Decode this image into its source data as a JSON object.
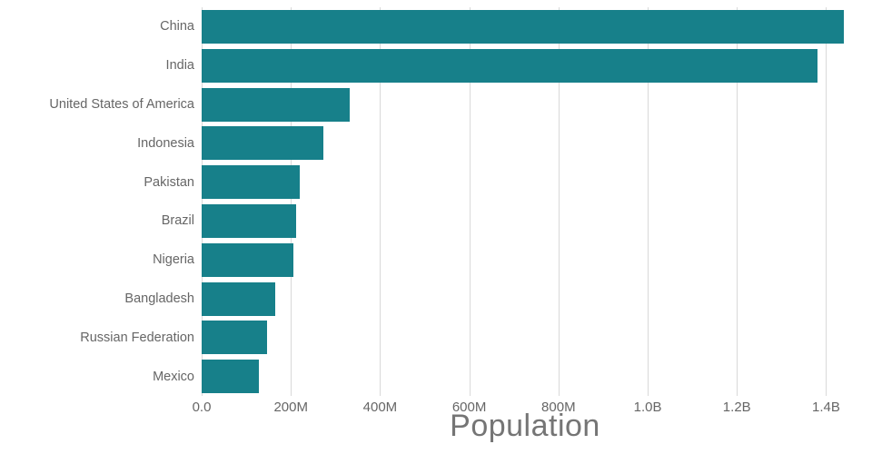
{
  "chart_data": {
    "type": "bar",
    "orientation": "horizontal",
    "title": "",
    "xlabel": "Population",
    "ylabel": "",
    "categories": [
      "China",
      "India",
      "United States of America",
      "Indonesia",
      "Pakistan",
      "Brazil",
      "Nigeria",
      "Bangladesh",
      "Russian Federation",
      "Mexico"
    ],
    "values": [
      1439000000,
      1380000000,
      331000000,
      273500000,
      220900000,
      212600000,
      206100000,
      164700000,
      145900000,
      128900000
    ],
    "xlim": [
      0,
      1450000000
    ],
    "xticks": [
      {
        "value": 0,
        "label": "0.0"
      },
      {
        "value": 200000000,
        "label": "200M"
      },
      {
        "value": 400000000,
        "label": "400M"
      },
      {
        "value": 600000000,
        "label": "600M"
      },
      {
        "value": 800000000,
        "label": "800M"
      },
      {
        "value": 1000000000,
        "label": "1.0B"
      },
      {
        "value": 1200000000,
        "label": "1.2B"
      },
      {
        "value": 1400000000,
        "label": "1.4B"
      }
    ],
    "grid": true,
    "legend": "none",
    "bar_color": "#17808a",
    "gridline_color": "#d9d9d9",
    "tick_label_color": "#666666",
    "axis_title_color": "#757575"
  }
}
